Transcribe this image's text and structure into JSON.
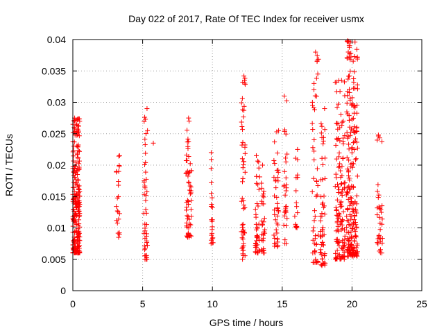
{
  "chart_data": {
    "type": "scatter",
    "title": "Day 022 of 2017, Rate Of TEC Index for receiver usmx",
    "xlabel": "GPS time / hours",
    "ylabel": "ROTI / TECUs",
    "xlim": [
      0,
      25
    ],
    "ylim": [
      0,
      0.04
    ],
    "xticks": [
      0,
      5,
      10,
      15,
      20,
      25
    ],
    "yticks": [
      0,
      0.005,
      0.01,
      0.015,
      0.02,
      0.025,
      0.03,
      0.035,
      0.04
    ],
    "xtick_labels": [
      "0",
      "5",
      "10",
      "15",
      "20",
      "25"
    ],
    "ytick_labels": [
      "0",
      "0.005",
      "0.01",
      "0.015",
      "0.02",
      "0.025",
      "0.03",
      "0.035",
      "0.04"
    ],
    "grid": true,
    "marker": "+",
    "color": "#ff0000",
    "clusters": [
      {
        "x": [
          0.0,
          0.5
        ],
        "y": [
          0.006,
          0.0275
        ],
        "n": 240
      },
      {
        "x": [
          3.1,
          3.35
        ],
        "y": [
          0.0085,
          0.0215
        ],
        "n": 22
      },
      {
        "x": [
          5.05,
          5.35
        ],
        "y": [
          0.005,
          0.029
        ],
        "n": 45
      },
      {
        "x": [
          5.7,
          5.8
        ],
        "y": [
          0.0235,
          0.0235
        ],
        "n": 1
      },
      {
        "x": [
          8.1,
          8.5
        ],
        "y": [
          0.0085,
          0.0275
        ],
        "n": 60
      },
      {
        "x": [
          9.9,
          10.05
        ],
        "y": [
          0.0075,
          0.022
        ],
        "n": 22
      },
      {
        "x": [
          12.05,
          12.35
        ],
        "y": [
          0.005,
          0.0342
        ],
        "n": 55
      },
      {
        "x": [
          13.05,
          13.4
        ],
        "y": [
          0.006,
          0.0215
        ],
        "n": 40
      },
      {
        "x": [
          13.5,
          13.75
        ],
        "y": [
          0.006,
          0.02
        ],
        "n": 30
      },
      {
        "x": [
          14.4,
          14.75
        ],
        "y": [
          0.007,
          0.0255
        ],
        "n": 40
      },
      {
        "x": [
          15.1,
          15.35
        ],
        "y": [
          0.0075,
          0.031
        ],
        "n": 30
      },
      {
        "x": [
          15.9,
          16.15
        ],
        "y": [
          0.01,
          0.0225
        ],
        "n": 18
      },
      {
        "x": [
          17.15,
          17.6
        ],
        "y": [
          0.0045,
          0.038
        ],
        "n": 55
      },
      {
        "x": [
          17.7,
          18.1
        ],
        "y": [
          0.004,
          0.029
        ],
        "n": 55
      },
      {
        "x": [
          18.8,
          19.5
        ],
        "y": [
          0.005,
          0.0335
        ],
        "n": 130
      },
      {
        "x": [
          19.6,
          20.4
        ],
        "y": [
          0.0055,
          0.0398
        ],
        "n": 230
      },
      {
        "x": [
          21.8,
          22.2
        ],
        "y": [
          0.006,
          0.0248
        ],
        "n": 35
      }
    ]
  }
}
